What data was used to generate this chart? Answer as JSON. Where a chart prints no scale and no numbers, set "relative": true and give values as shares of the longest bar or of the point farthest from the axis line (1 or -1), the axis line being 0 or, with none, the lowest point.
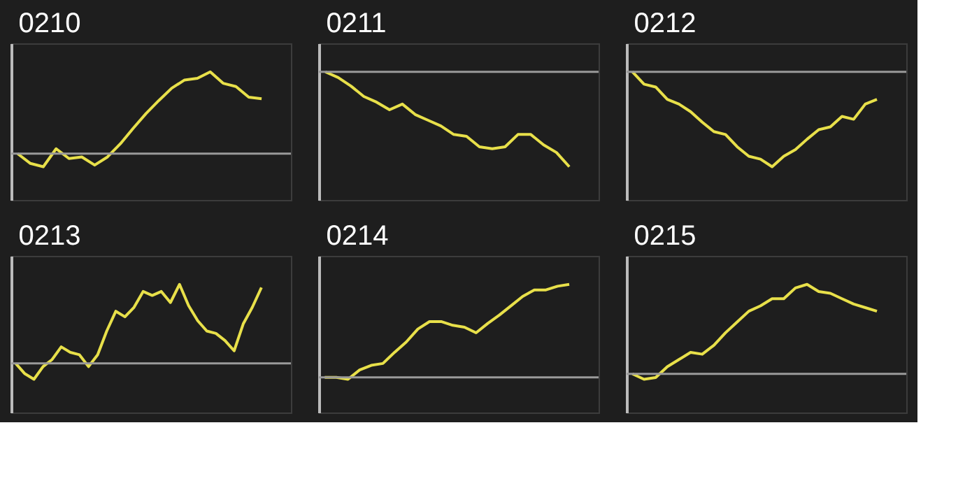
{
  "chart_data": [
    {
      "type": "line",
      "title": "0210",
      "relative": true,
      "categories": [
        null,
        null,
        null,
        null,
        null,
        null,
        null,
        null,
        null,
        null,
        null,
        null,
        null,
        null,
        null,
        null,
        null,
        null,
        null,
        null
      ],
      "series": [
        {
          "color": "#e8e04a",
          "values": [
            0,
            -0.12,
            -0.16,
            0.06,
            -0.06,
            -0.04,
            -0.14,
            -0.04,
            0.12,
            0.31,
            0.49,
            0.65,
            0.8,
            0.9,
            0.92,
            1,
            0.86,
            0.82,
            0.69,
            0.67
          ]
        }
      ]
    },
    {
      "type": "line",
      "title": "0211",
      "relative": true,
      "categories": [
        null,
        null,
        null,
        null,
        null,
        null,
        null,
        null,
        null,
        null,
        null,
        null,
        null,
        null,
        null,
        null,
        null,
        null,
        null,
        null
      ],
      "series": [
        {
          "color": "#e8e04a",
          "values": [
            0,
            -0.06,
            -0.15,
            -0.26,
            -0.32,
            -0.4,
            -0.34,
            -0.45,
            -0.51,
            -0.57,
            -0.66,
            -0.68,
            -0.79,
            -0.81,
            -0.79,
            -0.66,
            -0.66,
            -0.77,
            -0.85,
            -1
          ]
        }
      ]
    },
    {
      "type": "line",
      "title": "0212",
      "relative": true,
      "categories": [
        null,
        null,
        null,
        null,
        null,
        null,
        null,
        null,
        null,
        null,
        null,
        null,
        null,
        null,
        null,
        null,
        null,
        null,
        null,
        null,
        null,
        null
      ],
      "series": [
        {
          "color": "#e8e04a",
          "values": [
            0,
            -0.13,
            -0.16,
            -0.29,
            -0.34,
            -0.42,
            -0.53,
            -0.63,
            -0.66,
            -0.79,
            -0.89,
            -0.92,
            -1,
            -0.89,
            -0.82,
            -0.71,
            -0.61,
            -0.58,
            -0.47,
            -0.5,
            -0.34,
            -0.29
          ]
        }
      ]
    },
    {
      "type": "line",
      "title": "0213",
      "relative": true,
      "categories": [
        null,
        null,
        null,
        null,
        null,
        null,
        null,
        null,
        null,
        null,
        null,
        null,
        null,
        null,
        null,
        null,
        null,
        null,
        null,
        null,
        null,
        null,
        null,
        null,
        null,
        null,
        null,
        null
      ],
      "series": [
        {
          "color": "#e8e04a",
          "values": [
            0,
            -0.13,
            -0.2,
            -0.04,
            0.05,
            0.21,
            0.14,
            0.11,
            -0.04,
            0.11,
            0.41,
            0.66,
            0.59,
            0.71,
            0.91,
            0.86,
            0.91,
            0.77,
            1,
            0.73,
            0.54,
            0.41,
            0.38,
            0.29,
            0.16,
            0.5,
            0.71,
            0.96
          ]
        }
      ]
    },
    {
      "type": "line",
      "title": "0214",
      "relative": true,
      "categories": [
        null,
        null,
        null,
        null,
        null,
        null,
        null,
        null,
        null,
        null,
        null,
        null,
        null,
        null,
        null,
        null,
        null,
        null,
        null,
        null,
        null,
        null
      ],
      "series": [
        {
          "color": "#e8e04a",
          "values": [
            0,
            0,
            -0.02,
            0.08,
            0.13,
            0.15,
            0.27,
            0.38,
            0.52,
            0.6,
            0.6,
            0.56,
            0.54,
            0.48,
            0.58,
            0.67,
            0.77,
            0.87,
            0.94,
            0.94,
            0.98,
            1
          ]
        }
      ]
    },
    {
      "type": "line",
      "title": "0215",
      "relative": true,
      "categories": [
        null,
        null,
        null,
        null,
        null,
        null,
        null,
        null,
        null,
        null,
        null,
        null,
        null,
        null,
        null,
        null,
        null,
        null,
        null,
        null,
        null,
        null
      ],
      "series": [
        {
          "color": "#e8e04a",
          "values": [
            0,
            -0.06,
            -0.04,
            0.08,
            0.16,
            0.24,
            0.22,
            0.32,
            0.46,
            0.58,
            0.7,
            0.76,
            0.84,
            0.84,
            0.96,
            1,
            0.92,
            0.9,
            0.84,
            0.78,
            0.74,
            0.7
          ]
        }
      ]
    }
  ]
}
